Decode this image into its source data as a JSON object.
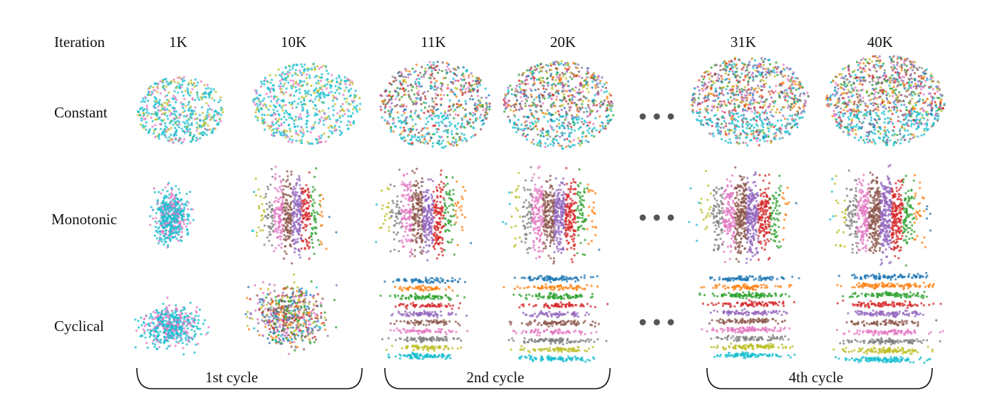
{
  "header": {
    "iteration_label": "Iteration",
    "columns": [
      "1K",
      "10K",
      "11K",
      "20K",
      "31K",
      "40K"
    ]
  },
  "rows": [
    {
      "label": "Constant",
      "style": "swirl"
    },
    {
      "label": "Monotonic",
      "style": "gradient"
    },
    {
      "label": "Cyclical",
      "style": "bands"
    }
  ],
  "ellipsis": "•••",
  "cycles": [
    "1st cycle",
    "2nd cycle",
    "4th cycle"
  ],
  "palette": [
    "#1f77b4",
    "#ff7f0e",
    "#2ca02c",
    "#d62728",
    "#9467bd",
    "#8c564b",
    "#e377c2",
    "#7f7f7f",
    "#bcbd22",
    "#17becf"
  ]
}
